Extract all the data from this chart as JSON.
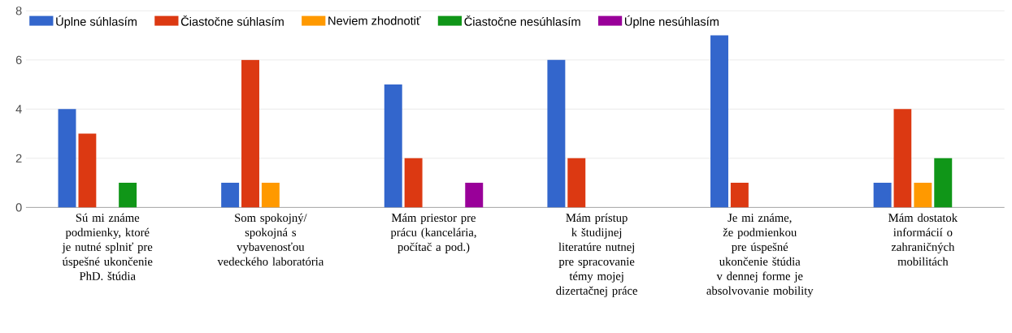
{
  "chart_data": {
    "type": "bar",
    "categories": [
      "Sú mi známe podmienky, ktoré je nutné splniť pre úspešné ukončenie PhD. štúdia",
      "Som spokojný/ spokojná s vybavenosťou vedeckého laboratória",
      "Mám priestor pre prácu (kancelária, počítač a pod.)",
      "Mám prístup k študijnej literatúre nutnej pre spracovanie témy mojej dizertačnej práce",
      "Je mi známe, že podmienkou pre úspešné ukončenie štúdia v dennej forme je absolvovanie mobility",
      "Mám dostatok informácií o zahraničných mobilitách"
    ],
    "series": [
      {
        "name": "Úplne súhlasím",
        "color": "#3366cc",
        "values": [
          4,
          1,
          5,
          6,
          7,
          1
        ]
      },
      {
        "name": "Čiastočne súhlasím",
        "color": "#dc3912",
        "values": [
          3,
          6,
          2,
          2,
          1,
          4
        ]
      },
      {
        "name": "Neviem zhodnotiť",
        "color": "#ff9900",
        "values": [
          0,
          1,
          0,
          0,
          0,
          1
        ]
      },
      {
        "name": "Čiastočne nesúhlasím",
        "color": "#109618",
        "values": [
          1,
          0,
          0,
          0,
          0,
          2
        ]
      },
      {
        "name": "Úplne nesúhlasím",
        "color": "#990099",
        "values": [
          0,
          0,
          1,
          0,
          0,
          0
        ]
      }
    ],
    "ylim": [
      0,
      8
    ],
    "yticks": [
      0,
      2,
      4,
      6,
      8
    ],
    "grid": "y",
    "legend": "top left"
  }
}
